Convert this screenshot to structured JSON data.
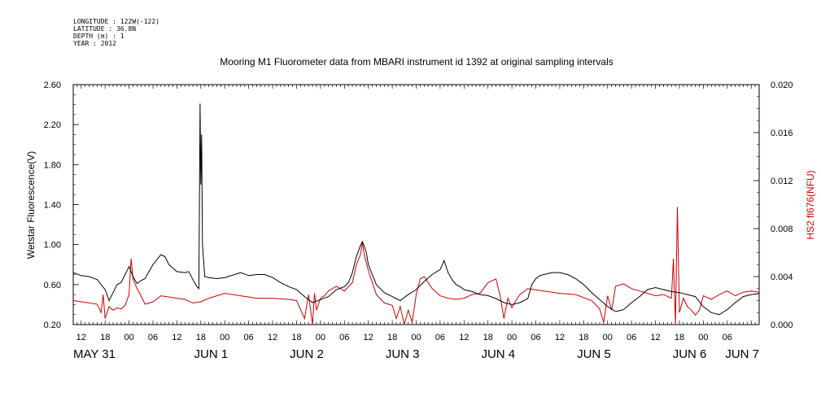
{
  "header": {
    "lines": [
      "LONGITUDE : 122W(-122)",
      "LATITUDE : 36.8N",
      "DEPTH (m) : 1",
      "YEAR : 2012"
    ]
  },
  "chart_data": {
    "type": "line",
    "title": "Mooring M1 Fluorometer data from MBARI instrument id 1392 at original sampling intervals",
    "ylabel": "Wetstar Fluorescence(V)",
    "y2label": "HS2 fl676(NFU)",
    "ylim": [
      0.2,
      2.6
    ],
    "y2lim": [
      0.0,
      0.02
    ],
    "xlim": [
      -14,
      158
    ],
    "x_unit": "hours after 2012-05-31 00:00",
    "yticks": [
      "0.20",
      "0.60",
      "1.00",
      "1.40",
      "1.80",
      "2.20",
      "2.60"
    ],
    "y2ticks": [
      "0.000",
      "0.004",
      "0.008",
      "0.012",
      "0.016",
      "0.020"
    ],
    "hour_ticks": [
      "12",
      "18",
      "00",
      "06",
      "12",
      "18",
      "00",
      "06",
      "12",
      "18",
      "00",
      "06",
      "12",
      "18",
      "00",
      "06",
      "12",
      "18",
      "00",
      "06",
      "12",
      "18",
      "00",
      "06",
      "12",
      "18",
      "00",
      "06"
    ],
    "date_labels": [
      "MAY 31",
      "JUN  1",
      "JUN  2",
      "JUN  3",
      "JUN  4",
      "JUN  5",
      "JUN  6",
      "JUN  7"
    ],
    "colors": {
      "wetstar": "#000000",
      "hs2": "#cc0000",
      "y2label": "#cc0000"
    },
    "series": [
      {
        "name": "Wetstar Fluorescence(V)",
        "axis": "left",
        "x": [
          -14,
          -12,
          -10,
          -8,
          -6,
          -5,
          -4,
          -3,
          -2,
          0,
          1,
          2,
          3,
          4,
          6,
          8,
          9,
          10,
          12,
          14,
          15,
          16,
          17,
          17.5,
          17.8,
          18.0,
          18.2,
          18.4,
          19,
          20,
          22,
          24,
          28,
          30,
          32,
          34,
          36,
          38,
          40,
          42,
          44,
          46,
          48,
          50,
          52,
          54,
          55,
          56,
          57,
          58,
          58.5,
          59,
          59.5,
          60,
          62,
          64,
          66,
          68,
          70,
          72,
          74,
          76,
          78,
          79,
          80,
          81,
          82,
          83,
          84,
          86,
          88,
          90,
          92,
          94,
          96,
          98,
          100,
          101,
          102,
          103,
          104,
          106,
          108,
          110,
          112,
          114,
          116,
          118,
          120,
          122,
          124,
          126,
          128,
          130,
          132,
          134,
          136,
          138,
          140,
          142,
          144,
          146,
          148,
          150,
          152,
          154,
          156,
          158
        ],
        "y": [
          0.72,
          0.69,
          0.68,
          0.65,
          0.55,
          0.44,
          0.52,
          0.6,
          0.62,
          0.78,
          0.68,
          0.61,
          0.64,
          0.66,
          0.8,
          0.9,
          0.88,
          0.8,
          0.73,
          0.72,
          0.73,
          0.65,
          0.58,
          0.56,
          2.41,
          1.6,
          2.1,
          1.0,
          0.68,
          0.67,
          0.66,
          0.67,
          0.72,
          0.69,
          0.7,
          0.7,
          0.67,
          0.62,
          0.58,
          0.55,
          0.48,
          0.42,
          0.45,
          0.48,
          0.55,
          0.58,
          0.62,
          0.72,
          0.88,
          0.99,
          1.03,
          0.98,
          0.92,
          0.8,
          0.6,
          0.52,
          0.48,
          0.44,
          0.5,
          0.55,
          0.63,
          0.7,
          0.75,
          0.84,
          0.72,
          0.65,
          0.6,
          0.58,
          0.55,
          0.53,
          0.5,
          0.49,
          0.46,
          0.42,
          0.4,
          0.42,
          0.46,
          0.6,
          0.66,
          0.69,
          0.7,
          0.72,
          0.72,
          0.7,
          0.66,
          0.6,
          0.52,
          0.45,
          0.38,
          0.33,
          0.35,
          0.42,
          0.48,
          0.55,
          0.57,
          0.55,
          0.53,
          0.52,
          0.5,
          0.48,
          0.38,
          0.32,
          0.3,
          0.35,
          0.42,
          0.48,
          0.5,
          0.51
        ]
      },
      {
        "name": "HS2 fl676(NFU)",
        "axis": "right",
        "x": [
          -14,
          -12,
          -10,
          -8,
          -7,
          -6.5,
          -6,
          -5,
          -4,
          -3,
          -2,
          -1,
          0,
          0.5,
          1,
          2,
          3,
          4,
          6,
          8,
          10,
          12,
          14,
          16,
          18,
          20,
          24,
          28,
          32,
          36,
          40,
          42,
          44,
          45,
          46,
          46.5,
          47,
          48,
          49,
          50,
          52,
          54,
          56,
          57,
          58,
          58.5,
          59,
          60,
          62,
          64,
          66,
          67,
          68,
          69,
          70,
          71,
          72,
          73,
          74,
          76,
          78,
          80,
          82,
          84,
          86,
          88,
          90,
          92,
          93,
          94,
          95,
          96,
          97,
          98,
          100,
          104,
          108,
          112,
          116,
          118,
          119,
          120,
          121,
          122,
          124,
          126,
          128,
          130,
          132,
          134,
          136,
          136.5,
          137,
          137.5,
          138,
          139,
          140,
          141,
          142,
          143,
          144,
          146,
          148,
          150,
          152,
          154,
          156,
          158
        ],
        "y": [
          0.002,
          0.0019,
          0.0018,
          0.0017,
          0.001,
          0.0025,
          0.0005,
          0.0015,
          0.0012,
          0.0014,
          0.0013,
          0.0016,
          0.0025,
          0.0055,
          0.0038,
          0.003,
          0.0024,
          0.0017,
          0.0019,
          0.0024,
          0.0023,
          0.0022,
          0.0021,
          0.0018,
          0.0019,
          0.0022,
          0.0026,
          0.0024,
          0.0022,
          0.0022,
          0.0021,
          0.002,
          0.0005,
          0.0025,
          0.0,
          0.0026,
          0.0012,
          0.0022,
          0.0024,
          0.0028,
          0.0032,
          0.0028,
          0.0035,
          0.005,
          0.0058,
          0.0068,
          0.0058,
          0.0045,
          0.0025,
          0.0018,
          0.0016,
          0.0005,
          0.0015,
          0.0,
          0.0012,
          0.0002,
          0.0025,
          0.0038,
          0.004,
          0.003,
          0.0024,
          0.0022,
          0.0021,
          0.0022,
          0.0025,
          0.0026,
          0.0035,
          0.0038,
          0.0025,
          0.0005,
          0.0022,
          0.0014,
          0.002,
          0.0025,
          0.003,
          0.0028,
          0.0026,
          0.0025,
          0.002,
          0.0013,
          0.0002,
          0.0024,
          0.0012,
          0.0032,
          0.0034,
          0.003,
          0.0028,
          0.0026,
          0.0024,
          0.0025,
          0.0022,
          0.0055,
          0.0,
          0.0098,
          0.001,
          0.0022,
          0.0015,
          0.0012,
          0.0008,
          0.0012,
          0.0024,
          0.0021,
          0.0025,
          0.0028,
          0.0024,
          0.0027,
          0.0028,
          0.0027
        ]
      }
    ]
  }
}
